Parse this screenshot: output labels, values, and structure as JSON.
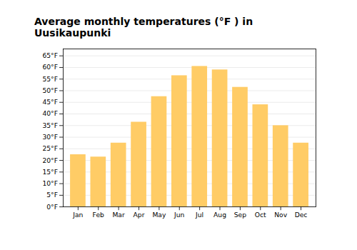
{
  "chart_data": {
    "type": "bar",
    "title": "Average monthly temperatures (°F ) in Uusikaupunki",
    "categories": [
      "Jan",
      "Feb",
      "Mar",
      "Apr",
      "May",
      "Jun",
      "Jul",
      "Aug",
      "Sep",
      "Oct",
      "Nov",
      "Dec"
    ],
    "values": [
      22.5,
      21.5,
      27.5,
      36.5,
      47.5,
      56.5,
      60.5,
      59.0,
      51.5,
      44.0,
      35.0,
      27.5
    ],
    "color": "#FFCC66",
    "ylim": [
      0,
      68
    ],
    "yticks": [
      {
        "value": 0,
        "label": "0°F"
      },
      {
        "value": 5,
        "label": "5°F"
      },
      {
        "value": 10,
        "label": "10°F"
      },
      {
        "value": 15,
        "label": "15°F"
      },
      {
        "value": 20,
        "label": "20°F"
      },
      {
        "value": 25,
        "label": "25°F"
      },
      {
        "value": 30,
        "label": "30°F"
      },
      {
        "value": 35,
        "label": "35°F"
      },
      {
        "value": 40,
        "label": "40°F"
      },
      {
        "value": 45,
        "label": "45°F"
      },
      {
        "value": 50,
        "label": "50°F"
      },
      {
        "value": 55,
        "label": "55°F"
      },
      {
        "value": 60,
        "label": "60°F"
      },
      {
        "value": 65,
        "label": "65°F"
      }
    ],
    "grid": true
  }
}
